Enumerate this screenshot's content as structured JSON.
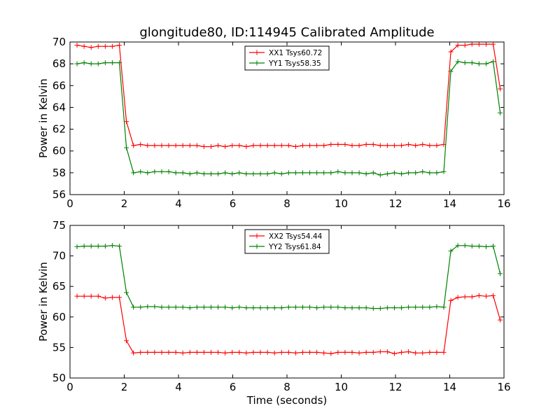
{
  "title": "glongitude80, ID:114945 Calibrated Amplitude",
  "colors": {
    "xx": "#ff0000",
    "yy": "#008000",
    "axis": "#000000",
    "background": "#ffffff"
  },
  "chart_data": [
    {
      "type": "line",
      "title": "glongitude80, ID:114945 Calibrated Amplitude",
      "xlabel": "",
      "ylabel": "Power in Kelvin",
      "xlim": [
        0,
        16
      ],
      "ylim": [
        56,
        70
      ],
      "xticks": [
        0,
        2,
        4,
        6,
        8,
        10,
        12,
        14,
        16
      ],
      "yticks": [
        56,
        58,
        60,
        62,
        64,
        66,
        68,
        70
      ],
      "grid": false,
      "legend_position": "top-center",
      "marker": "plus",
      "x": [
        0.26,
        0.52,
        0.78,
        1.04,
        1.3,
        1.56,
        1.82,
        2.08,
        2.34,
        2.6,
        2.86,
        3.12,
        3.38,
        3.64,
        3.9,
        4.16,
        4.42,
        4.68,
        4.94,
        5.2,
        5.46,
        5.72,
        5.98,
        6.24,
        6.5,
        6.76,
        7.02,
        7.28,
        7.54,
        7.8,
        8.06,
        8.32,
        8.58,
        8.84,
        9.1,
        9.36,
        9.62,
        9.88,
        10.14,
        10.4,
        10.66,
        10.92,
        11.18,
        11.44,
        11.7,
        11.96,
        12.22,
        12.48,
        12.74,
        13.0,
        13.26,
        13.52,
        13.78,
        14.04,
        14.3,
        14.56,
        14.82,
        15.08,
        15.34,
        15.6,
        15.86
      ],
      "series": [
        {
          "name": "XX1 Tsys60.72",
          "color": "#ff0000",
          "values": [
            69.7,
            69.6,
            69.5,
            69.6,
            69.6,
            69.6,
            69.7,
            62.7,
            60.5,
            60.6,
            60.5,
            60.5,
            60.5,
            60.5,
            60.5,
            60.5,
            60.5,
            60.5,
            60.4,
            60.4,
            60.5,
            60.4,
            60.5,
            60.5,
            60.4,
            60.5,
            60.5,
            60.5,
            60.5,
            60.5,
            60.5,
            60.4,
            60.5,
            60.5,
            60.5,
            60.5,
            60.6,
            60.6,
            60.6,
            60.5,
            60.5,
            60.6,
            60.6,
            60.5,
            60.5,
            60.5,
            60.5,
            60.6,
            60.5,
            60.6,
            60.5,
            60.5,
            60.6,
            69.1,
            69.7,
            69.7,
            69.8,
            69.8,
            69.8,
            69.8,
            65.7
          ]
        },
        {
          "name": "YY1 Tsys58.35",
          "color": "#008000",
          "values": [
            68.0,
            68.1,
            68.0,
            68.0,
            68.1,
            68.1,
            68.1,
            60.3,
            58.0,
            58.1,
            58.0,
            58.1,
            58.1,
            58.1,
            58.0,
            58.0,
            57.9,
            58.0,
            57.9,
            57.9,
            57.9,
            58.0,
            57.9,
            58.0,
            57.9,
            57.9,
            57.9,
            57.9,
            58.0,
            57.9,
            58.0,
            58.0,
            58.0,
            58.0,
            58.0,
            58.0,
            58.0,
            58.1,
            58.0,
            58.0,
            58.0,
            57.9,
            58.0,
            57.8,
            57.9,
            58.0,
            57.9,
            58.0,
            58.0,
            58.1,
            58.0,
            58.0,
            58.1,
            67.3,
            68.2,
            68.1,
            68.1,
            68.0,
            68.0,
            68.2,
            63.5
          ]
        }
      ]
    },
    {
      "type": "line",
      "title": "",
      "xlabel": "Time (seconds)",
      "ylabel": "Power in Kelvin",
      "xlim": [
        0,
        16
      ],
      "ylim": [
        50,
        75
      ],
      "xticks": [
        0,
        2,
        4,
        6,
        8,
        10,
        12,
        14,
        16
      ],
      "yticks": [
        50,
        55,
        60,
        65,
        70,
        75
      ],
      "grid": false,
      "legend_position": "top-center",
      "marker": "plus",
      "x": [
        0.26,
        0.52,
        0.78,
        1.04,
        1.3,
        1.56,
        1.82,
        2.08,
        2.34,
        2.6,
        2.86,
        3.12,
        3.38,
        3.64,
        3.9,
        4.16,
        4.42,
        4.68,
        4.94,
        5.2,
        5.46,
        5.72,
        5.98,
        6.24,
        6.5,
        6.76,
        7.02,
        7.28,
        7.54,
        7.8,
        8.06,
        8.32,
        8.58,
        8.84,
        9.1,
        9.36,
        9.62,
        9.88,
        10.14,
        10.4,
        10.66,
        10.92,
        11.18,
        11.44,
        11.7,
        11.96,
        12.22,
        12.48,
        12.74,
        13.0,
        13.26,
        13.52,
        13.78,
        14.04,
        14.3,
        14.56,
        14.82,
        15.08,
        15.34,
        15.6,
        15.86
      ],
      "series": [
        {
          "name": "XX2 Tsys54.44",
          "color": "#ff0000",
          "values": [
            63.4,
            63.4,
            63.4,
            63.4,
            63.1,
            63.2,
            63.2,
            56.1,
            54.1,
            54.2,
            54.2,
            54.2,
            54.2,
            54.2,
            54.2,
            54.1,
            54.2,
            54.2,
            54.2,
            54.2,
            54.2,
            54.1,
            54.2,
            54.2,
            54.1,
            54.2,
            54.2,
            54.2,
            54.1,
            54.2,
            54.2,
            54.1,
            54.2,
            54.2,
            54.2,
            54.1,
            54.0,
            54.2,
            54.2,
            54.2,
            54.1,
            54.2,
            54.2,
            54.3,
            54.3,
            54.0,
            54.2,
            54.3,
            54.1,
            54.1,
            54.2,
            54.2,
            54.2,
            62.7,
            63.2,
            63.3,
            63.3,
            63.5,
            63.4,
            63.5,
            59.5
          ]
        },
        {
          "name": "YY2 Tsys61.84",
          "color": "#008000",
          "values": [
            71.5,
            71.6,
            71.6,
            71.6,
            71.6,
            71.7,
            71.6,
            64.0,
            61.6,
            61.6,
            61.7,
            61.7,
            61.6,
            61.6,
            61.6,
            61.6,
            61.5,
            61.6,
            61.6,
            61.6,
            61.6,
            61.6,
            61.5,
            61.6,
            61.5,
            61.5,
            61.5,
            61.5,
            61.5,
            61.5,
            61.6,
            61.6,
            61.6,
            61.6,
            61.5,
            61.6,
            61.6,
            61.6,
            61.5,
            61.5,
            61.5,
            61.5,
            61.4,
            61.4,
            61.5,
            61.5,
            61.5,
            61.6,
            61.6,
            61.6,
            61.6,
            61.7,
            61.6,
            70.8,
            71.7,
            71.7,
            71.6,
            71.6,
            71.5,
            71.6,
            67.1
          ]
        }
      ]
    }
  ]
}
